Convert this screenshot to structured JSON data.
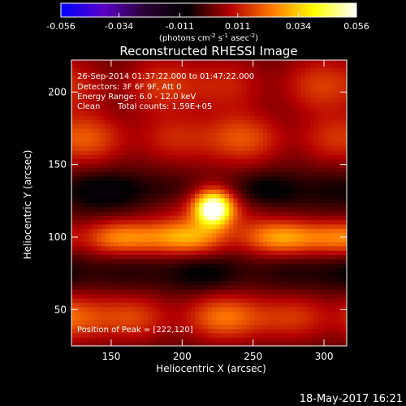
{
  "colorbar": {
    "tick_labels": [
      "-0.056",
      "-0.034",
      "-0.011",
      "0.011",
      "0.034",
      "0.056"
    ],
    "ticks": [
      -0.056,
      -0.034,
      -0.011,
      0.011,
      0.034,
      0.056
    ],
    "range": [
      -0.056,
      0.056
    ],
    "unit_parts": [
      "(photons cm",
      "-2",
      " s",
      "-1",
      " asec",
      "-2",
      ")"
    ],
    "stops": [
      "#0000ff",
      "#5a00c8",
      "#2a0033",
      "#000000",
      "#b40000",
      "#ff7800",
      "#ffff00",
      "#ffffff"
    ]
  },
  "chart_data": {
    "type": "heatmap",
    "title": "Reconstructed RHESSI Image",
    "xlabel": "Heliocentric X (arcsec)",
    "ylabel": "Heliocentric Y (arcsec)",
    "xlim": [
      122,
      316
    ],
    "ylim": [
      25,
      222
    ],
    "x_ticks": [
      150,
      200,
      250,
      300
    ],
    "y_ticks": [
      50,
      100,
      150,
      200
    ],
    "x_tick_labels": [
      "150",
      "200",
      "250",
      "300"
    ],
    "y_tick_labels": [
      "50",
      "100",
      "150",
      "200"
    ],
    "peak": {
      "x": 222,
      "y": 120,
      "value": 0.056
    },
    "bands": [
      {
        "y": 45,
        "value": 0.016,
        "sigma": 11
      },
      {
        "y": 75,
        "value": -0.006,
        "sigma": 9
      },
      {
        "y": 100,
        "value": 0.022,
        "sigma": 8
      },
      {
        "y": 132,
        "value": -0.008,
        "sigma": 9
      },
      {
        "y": 168,
        "value": 0.013,
        "sigma": 12
      },
      {
        "y": 205,
        "value": 0.011,
        "sigma": 14
      }
    ],
    "annotations": {
      "time_range": "26-Sep-2014 01:37:22.000 to 01:47:22.000",
      "detectors": "Detectors: 3F 6F 9F, Att 0",
      "energy": "Energy Range: 6.0 - 12.0 keV",
      "method": "Clean",
      "counts": "Total counts: 1.59E+05",
      "peak_text": "Position of Peak = [222,120]"
    }
  },
  "footer_timestamp": "18-May-2017 16:21"
}
